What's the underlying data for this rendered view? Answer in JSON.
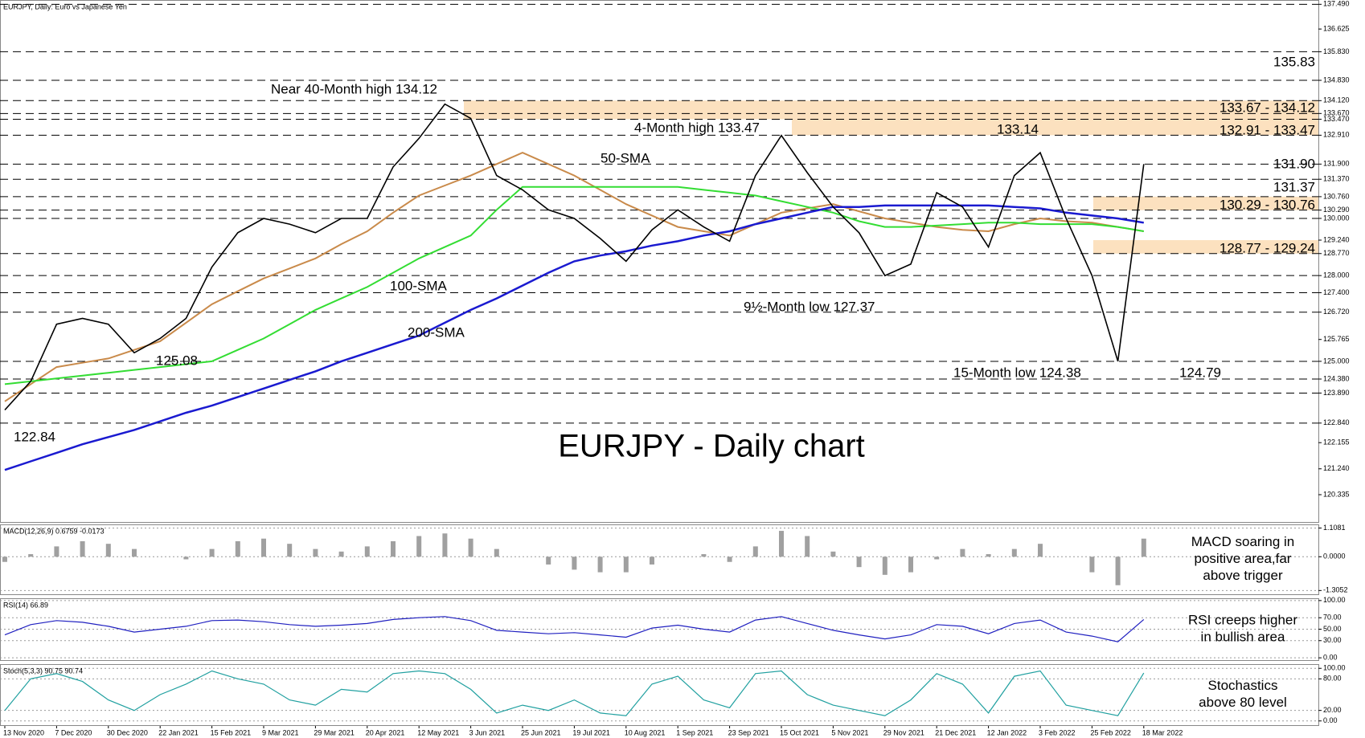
{
  "chart_data": [
    {
      "type": "line",
      "header": "EURJPY, Daily:  Euro vs Japanese Yen",
      "title": "EURJPY - Daily chart",
      "categories": [
        "13 Nov 2020",
        null,
        "7 Dec 2020",
        null,
        "30 Dec 2020",
        null,
        "22 Jan 2021",
        null,
        "15 Feb 2021",
        null,
        "9 Mar 2021",
        null,
        "29 Mar 2021",
        null,
        "20 Apr 2021",
        null,
        "12 May 2021",
        null,
        "3 Jun 2021",
        null,
        "25 Jun 2021",
        null,
        "19 Jul 2021",
        null,
        "10 Aug 2021",
        null,
        "1 Sep 2021",
        null,
        "23 Sep 2021",
        null,
        "15 Oct 2021",
        null,
        "5 Nov 2021",
        null,
        "29 Nov 2021",
        null,
        "21 Dec 2021",
        null,
        "12 Jan 2022",
        null,
        "3 Feb 2022",
        null,
        "25 Feb 2022",
        null,
        "18 Mar 2022"
      ],
      "values": [
        123.3,
        124.3,
        126.3,
        126.5,
        126.3,
        125.3,
        125.8,
        126.5,
        128.3,
        129.5,
        130.0,
        129.8,
        129.5,
        130.0,
        130.0,
        131.8,
        132.8,
        134.0,
        133.5,
        131.5,
        131.0,
        130.3,
        130.0,
        129.3,
        128.5,
        129.6,
        130.3,
        129.7,
        129.2,
        131.5,
        132.9,
        131.6,
        130.4,
        129.5,
        128.0,
        128.4,
        130.9,
        130.4,
        129.0,
        131.5,
        132.3,
        130.0,
        128.0,
        125.0,
        131.9
      ],
      "color": "#000000",
      "series": [
        {
          "name": "50-SMA",
          "color": "#c98a4a",
          "values": [
            123.6,
            124.2,
            124.8,
            124.95,
            125.1,
            125.4,
            125.7,
            126.35,
            127.0,
            127.45,
            127.9,
            128.25,
            128.6,
            129.1,
            129.55,
            130.2,
            130.8,
            131.15,
            131.5,
            131.9,
            132.3,
            131.9,
            131.5,
            131.0,
            130.5,
            130.1,
            129.7,
            129.55,
            129.4,
            129.8,
            130.2,
            130.35,
            130.5,
            130.25,
            130.0,
            129.85,
            129.7,
            129.6,
            129.55,
            129.8,
            130.0,
            129.9,
            129.85,
            129.7,
            129.55
          ]
        },
        {
          "name": "100-SMA",
          "color": "#33dd33",
          "values": [
            124.2,
            124.3,
            124.4,
            124.5,
            124.6,
            124.7,
            124.8,
            124.9,
            125.0,
            125.4,
            125.8,
            126.3,
            126.8,
            127.2,
            127.6,
            128.1,
            128.6,
            129.0,
            129.4,
            130.3,
            131.1,
            131.1,
            131.1,
            131.1,
            131.1,
            131.1,
            131.1,
            131.0,
            130.9,
            130.8,
            130.6,
            130.4,
            130.2,
            129.9,
            129.7,
            129.7,
            129.75,
            129.8,
            129.85,
            129.85,
            129.8,
            129.8,
            129.8,
            129.7,
            129.55
          ]
        },
        {
          "name": "200-SMA",
          "color": "#1a1ad0",
          "values": [
            121.2,
            121.5,
            121.8,
            122.1,
            122.35,
            122.6,
            122.9,
            123.2,
            123.45,
            123.75,
            124.05,
            124.35,
            124.65,
            125.0,
            125.3,
            125.6,
            125.9,
            126.35,
            126.8,
            127.2,
            127.65,
            128.1,
            128.5,
            128.7,
            128.85,
            129.05,
            129.2,
            129.4,
            129.55,
            129.8,
            130.0,
            130.2,
            130.4,
            130.4,
            130.45,
            130.45,
            130.45,
            130.45,
            130.45,
            130.4,
            130.35,
            130.2,
            130.1,
            130.0,
            129.85
          ]
        }
      ],
      "ylim": [
        119.38,
        137.64
      ],
      "yticks": [
        {
          "value": 137.49,
          "label": "137.490"
        },
        {
          "value": 136.625,
          "label": "136.625"
        },
        {
          "value": 135.83,
          "label": "135.830"
        },
        {
          "value": 134.83,
          "label": "134.830"
        },
        {
          "value": 134.12,
          "label": "134.120"
        },
        {
          "value": 133.67,
          "label": "133.670"
        },
        {
          "value": 133.47,
          "label": "133.470"
        },
        {
          "value": 132.91,
          "label": "132.910"
        },
        {
          "value": 131.9,
          "label": "131.900"
        },
        {
          "value": 131.37,
          "label": "131.370"
        },
        {
          "value": 130.76,
          "label": "130.760"
        },
        {
          "value": 130.29,
          "label": "130.290"
        },
        {
          "value": 130,
          "label": "130.000"
        },
        {
          "value": 129.24,
          "label": "129.240"
        },
        {
          "value": 128.77,
          "label": "128.770"
        },
        {
          "value": 128,
          "label": "128.000"
        },
        {
          "value": 127.4,
          "label": "127.400"
        },
        {
          "value": 126.72,
          "label": "126.720"
        },
        {
          "value": 125.765,
          "label": "125.765"
        },
        {
          "value": 125,
          "label": "125.000"
        },
        {
          "value": 124.38,
          "label": "124.380"
        },
        {
          "value": 123.89,
          "label": "123.890"
        },
        {
          "value": 122.84,
          "label": "122.840"
        },
        {
          "value": 122.155,
          "label": "122.155"
        },
        {
          "value": 121.24,
          "label": "121.240"
        },
        {
          "value": 120.335,
          "label": "120.335"
        }
      ],
      "levels": [
        137.49,
        135.83,
        134.83,
        134.12,
        133.67,
        133.47,
        132.91,
        131.9,
        131.37,
        130.76,
        130.29,
        130.0,
        128.77,
        128.0,
        127.4,
        126.72,
        125.0,
        124.38,
        123.89,
        122.84
      ],
      "zones": [
        [
          133.47,
          134.12
        ],
        [
          132.91,
          133.47
        ],
        [
          130.29,
          130.76
        ],
        [
          128.77,
          129.24
        ]
      ],
      "zone_color": "#fcdcb4",
      "annotations": [
        {
          "text": "Near 40-Month high 134.12",
          "color": "#000000"
        },
        {
          "text": "4-Month high 133.47",
          "color": "#000000"
        },
        {
          "text": "133.14",
          "color": "#000000"
        },
        {
          "text": "9½-Month low 127.37",
          "color": "#000000"
        },
        {
          "text": "125.08",
          "color": "#000000"
        },
        {
          "text": "122.84",
          "color": "#000000"
        },
        {
          "text": "15-Month low 124.38",
          "color": "#000000"
        },
        {
          "text": "124.79",
          "color": "#8a8ad8"
        }
      ],
      "level_labels": [
        {
          "text": "135.83",
          "color": "#2020d0"
        },
        {
          "text": "133.67 - 134.12",
          "color": "#2020d0"
        },
        {
          "text": "132.91 - 133.47",
          "color": "#2020d0"
        },
        {
          "text": "131.90",
          "color": "#2020d0"
        },
        {
          "text": "131.37",
          "color": "#e02020"
        },
        {
          "text": "130.29 - 130.76",
          "color": "#e02020"
        },
        {
          "text": "128.77 - 129.24",
          "color": "#e02020"
        }
      ]
    },
    {
      "type": "bar",
      "header": "MACD(12,26,9) 0.6759 -0.0173",
      "comment": [
        "MACD soaring in",
        "positive area,far",
        "above trigger"
      ],
      "values": [
        -0.2,
        0.1,
        0.4,
        0.6,
        0.5,
        0.3,
        0.0,
        -0.1,
        0.3,
        0.6,
        0.7,
        0.5,
        0.3,
        0.2,
        0.4,
        0.6,
        0.8,
        0.9,
        0.7,
        0.3,
        0.0,
        -0.3,
        -0.5,
        -0.6,
        -0.6,
        -0.3,
        0.0,
        0.1,
        -0.2,
        0.4,
        1.0,
        0.8,
        0.2,
        -0.4,
        -0.7,
        -0.6,
        -0.1,
        0.3,
        0.1,
        0.3,
        0.5,
        0.0,
        -0.6,
        -1.1,
        0.7
      ],
      "color": "#a0a0a0",
      "ylim": [
        -1.45,
        1.25
      ],
      "yticks": [
        {
          "value": 1.1081,
          "label": "1.1081"
        },
        {
          "value": 0,
          "label": "0.0000"
        },
        {
          "value": -1.3052,
          "label": "-1.3052"
        }
      ]
    },
    {
      "type": "line",
      "header": "RSI(14) 66.89",
      "comment": [
        "RSI creeps higher",
        "in bullish area"
      ],
      "values": [
        40,
        58,
        65,
        62,
        55,
        45,
        50,
        55,
        65,
        66,
        63,
        58,
        55,
        57,
        60,
        67,
        70,
        72,
        65,
        48,
        45,
        42,
        44,
        40,
        36,
        52,
        57,
        50,
        45,
        66,
        72,
        60,
        48,
        40,
        33,
        40,
        58,
        55,
        42,
        60,
        66,
        45,
        38,
        28,
        67
      ],
      "color": "#2020c0",
      "ylim": [
        -4,
        104
      ],
      "yticks": [
        {
          "value": 100,
          "label": "100.00"
        },
        {
          "value": 70,
          "label": "70.00"
        },
        {
          "value": 50,
          "label": "50.00"
        },
        {
          "value": 30,
          "label": "30.00"
        },
        {
          "value": 0,
          "label": "0.00"
        }
      ]
    },
    {
      "type": "line",
      "header": "Stoch(5,3,3) 90.75 90.74",
      "comment": [
        "Stochastics",
        "above 80 level"
      ],
      "values": [
        20,
        80,
        90,
        75,
        40,
        20,
        50,
        70,
        95,
        80,
        70,
        40,
        30,
        60,
        55,
        90,
        95,
        90,
        60,
        15,
        30,
        20,
        40,
        15,
        10,
        70,
        85,
        40,
        25,
        90,
        95,
        50,
        30,
        20,
        10,
        40,
        90,
        70,
        15,
        85,
        95,
        30,
        20,
        10,
        91
      ],
      "color": "#20a0a0",
      "ylim": [
        -8,
        108
      ],
      "yticks": [
        {
          "value": 100,
          "label": "100.00"
        },
        {
          "value": 80,
          "label": "80.00"
        },
        {
          "value": 20,
          "label": "20.00"
        },
        {
          "value": 0,
          "label": "0.00"
        }
      ]
    }
  ]
}
